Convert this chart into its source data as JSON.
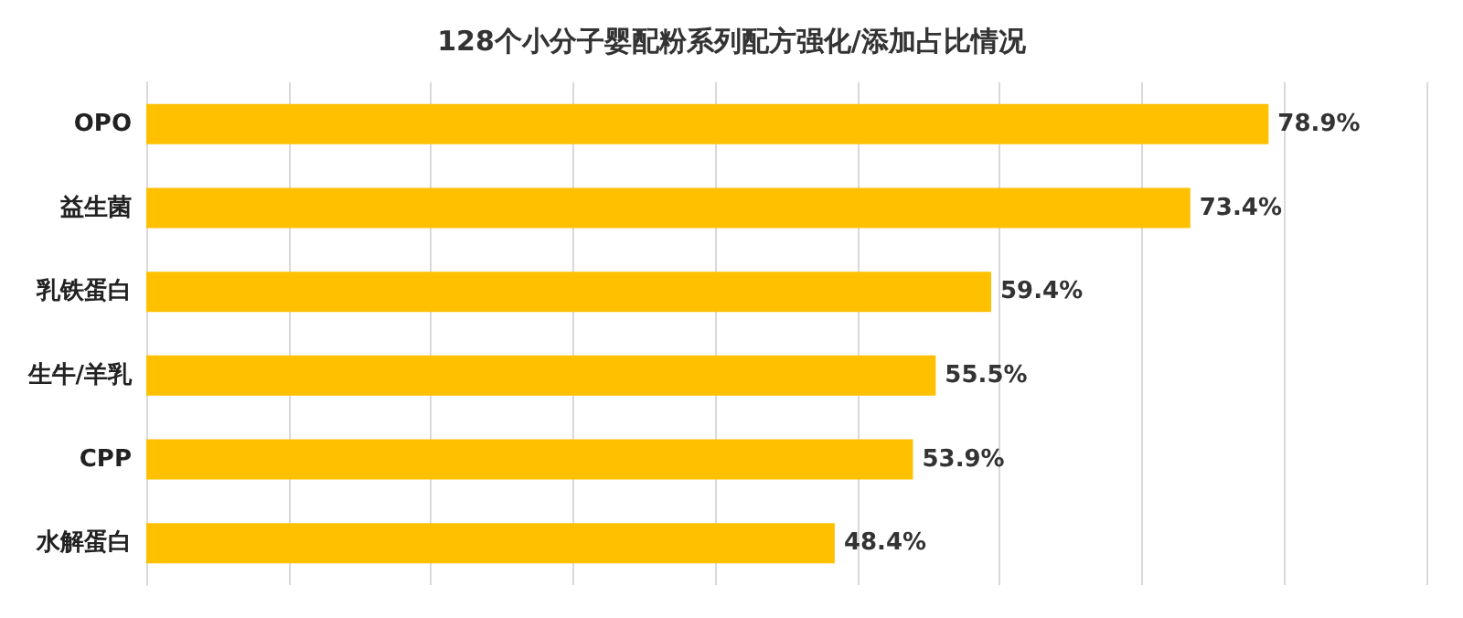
{
  "chart_data": {
    "type": "bar",
    "orientation": "horizontal",
    "title": "128个小分子婴配粉系列配方强化/添加占比情况",
    "categories": [
      "OPO",
      "益生菌",
      "乳铁蛋白",
      "生牛/羊乳",
      "CPP",
      "水解蛋白"
    ],
    "values": [
      78.9,
      73.4,
      59.4,
      55.5,
      53.9,
      48.4
    ],
    "value_labels": [
      "78.9%",
      "73.4%",
      "59.4%",
      "55.5%",
      "53.9%",
      "48.4%"
    ],
    "color": "#ffc000",
    "xlim": [
      0,
      90
    ],
    "xticks": [
      {
        "value": 0,
        "label": null
      },
      {
        "value": 10,
        "label": null
      },
      {
        "value": 20,
        "label": null
      },
      {
        "value": 30,
        "label": null
      },
      {
        "value": 40,
        "label": null
      },
      {
        "value": 50,
        "label": null
      },
      {
        "value": 60,
        "label": null
      },
      {
        "value": 70,
        "label": null
      },
      {
        "value": 80,
        "label": null
      },
      {
        "value": 90,
        "label": null
      }
    ],
    "grid": "x",
    "tick_labels": "y"
  }
}
